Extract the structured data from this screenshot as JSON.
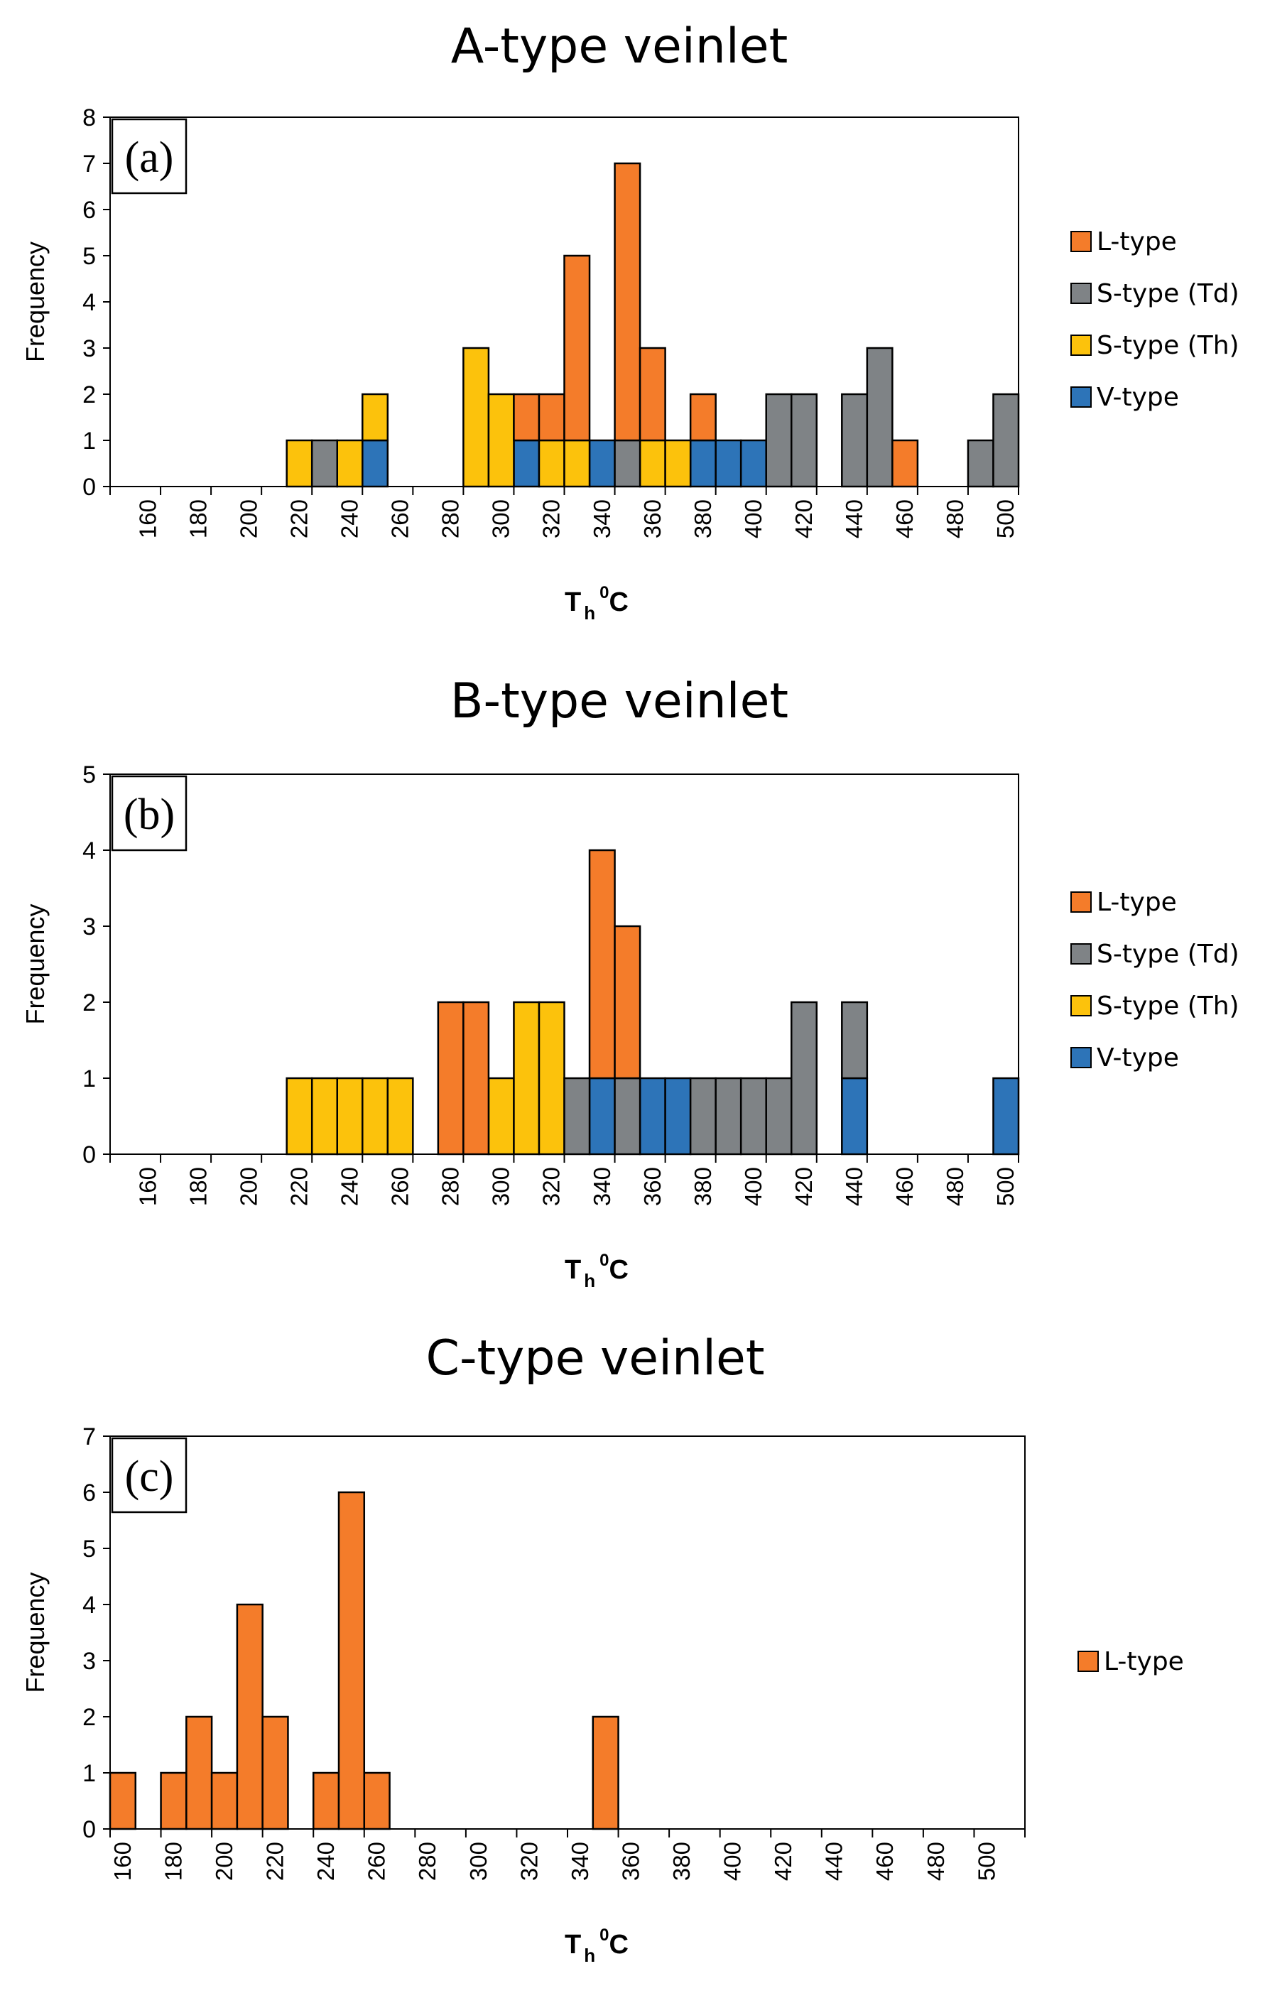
{
  "colors": {
    "L-type": "#f47c2a",
    "S-type (Td)": "#7f8386",
    "S-type (Th)": "#fcc20c",
    "V-type": "#2d74b8"
  },
  "stack_order": [
    "V-type",
    "S-type (Th)",
    "S-type (Td)",
    "L-type"
  ],
  "chart_data": [
    {
      "type": "bar",
      "stacked": true,
      "title": "A-type veinlet",
      "panel_label": "(a)",
      "xlabel": {
        "main": "T",
        "sub": "h",
        "sup": "0",
        "unit": "C"
      },
      "ylabel": "Frequency",
      "ylim": [
        0,
        8
      ],
      "yticks": [
        "0",
        "1",
        "2",
        "3",
        "4",
        "5",
        "6",
        "7",
        "8"
      ],
      "xticks": [
        "160",
        "180",
        "200",
        "220",
        "240",
        "260",
        "280",
        "300",
        "320",
        "340",
        "360",
        "380",
        "400",
        "420",
        "440",
        "460",
        "480",
        "500"
      ],
      "bin_start": 150,
      "bin_width": 10,
      "bin_count": 36,
      "legend": [
        "L-type",
        "S-type (Td)",
        "S-type (Th)",
        "V-type"
      ],
      "series": [
        {
          "name": "V-type",
          "bins": {
            "250": 1,
            "310": 1,
            "340": 1,
            "380": 1,
            "390": 1,
            "400": 1
          }
        },
        {
          "name": "S-type (Th)",
          "bins": {
            "220": 1,
            "240": 1,
            "250": 1,
            "290": 3,
            "300": 2,
            "320": 1,
            "330": 1,
            "360": 1,
            "370": 1
          }
        },
        {
          "name": "S-type (Td)",
          "bins": {
            "230": 1,
            "350": 1,
            "410": 2,
            "420": 2,
            "440": 2,
            "450": 3,
            "490": 1,
            "500": 2
          }
        },
        {
          "name": "L-type",
          "bins": {
            "310": 1,
            "320": 1,
            "330": 4,
            "350": 6,
            "360": 2,
            "380": 1,
            "460": 1
          }
        }
      ]
    },
    {
      "type": "bar",
      "stacked": true,
      "title": "B-type veinlet",
      "panel_label": "(b)",
      "xlabel": {
        "main": "T",
        "sub": "h",
        "sup": "0",
        "unit": "C"
      },
      "ylabel": "Frequency",
      "ylim": [
        0,
        5
      ],
      "yticks": [
        "0",
        "1",
        "2",
        "3",
        "4",
        "5"
      ],
      "xticks": [
        "160",
        "180",
        "200",
        "220",
        "240",
        "260",
        "280",
        "300",
        "320",
        "340",
        "360",
        "380",
        "400",
        "420",
        "440",
        "460",
        "480",
        "500"
      ],
      "bin_start": 150,
      "bin_width": 10,
      "bin_count": 36,
      "legend": [
        "L-type",
        "S-type (Td)",
        "S-type (Th)",
        "V-type"
      ],
      "series": [
        {
          "name": "V-type",
          "bins": {
            "340": 1,
            "360": 1,
            "370": 1,
            "440": 1,
            "500": 1
          }
        },
        {
          "name": "S-type (Th)",
          "bins": {
            "220": 1,
            "230": 1,
            "240": 1,
            "250": 1,
            "260": 1,
            "300": 1,
            "310": 2,
            "320": 2
          }
        },
        {
          "name": "S-type (Td)",
          "bins": {
            "330": 1,
            "350": 1,
            "380": 1,
            "390": 1,
            "400": 1,
            "410": 1,
            "420": 2,
            "440": 1
          }
        },
        {
          "name": "L-type",
          "bins": {
            "280": 2,
            "290": 2,
            "340": 3,
            "350": 2
          }
        }
      ]
    },
    {
      "type": "bar",
      "stacked": true,
      "title": "C-type veinlet",
      "panel_label": "(c)",
      "xlabel": {
        "main": "T",
        "sub": "h",
        "sup": "0",
        "unit": "C"
      },
      "ylabel": "Frequency",
      "ylim": [
        0,
        7
      ],
      "yticks": [
        "0",
        "1",
        "2",
        "3",
        "4",
        "5",
        "6",
        "7"
      ],
      "xticks": [
        "160",
        "180",
        "200",
        "220",
        "240",
        "260",
        "280",
        "300",
        "320",
        "340",
        "360",
        "380",
        "400",
        "420",
        "440",
        "460",
        "480",
        "500"
      ],
      "bin_start": 160,
      "bin_width": 10,
      "bin_count": 36,
      "legend": [
        "L-type"
      ],
      "series": [
        {
          "name": "L-type",
          "bins": {
            "160": 1,
            "180": 1,
            "190": 2,
            "200": 1,
            "210": 4,
            "220": 2,
            "240": 1,
            "250": 6,
            "260": 1,
            "350": 2
          }
        }
      ]
    }
  ]
}
